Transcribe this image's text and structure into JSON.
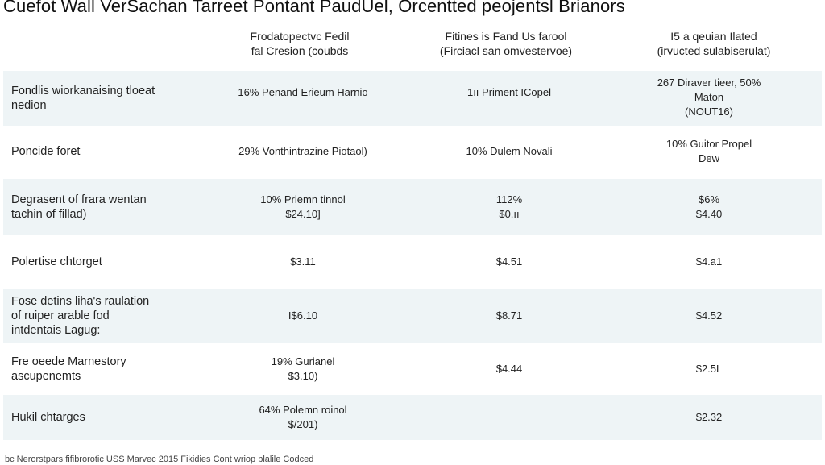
{
  "title": "Cuefot Wall VerSachan Tarreet Pontant PaudUel, Orcentted peojentsl Brianors",
  "columns": [
    {
      "lines": [
        "Frodatopectvc Fedil",
        "fal Cresion (coubds"
      ]
    },
    {
      "lines": [
        "Fitines is Fand Us farool",
        "(Firciacl san omvestervoe)"
      ]
    },
    {
      "lines": [
        "I5 a qeuian Ilated",
        "(irvucted sulabiserulat)"
      ]
    }
  ],
  "rows": [
    {
      "label": [
        "Fondlis wiorkanaising tloeat",
        "nedion"
      ],
      "cells": [
        [
          "16% Penand Erieum Harnio"
        ],
        [
          "1ıı Priment ICopel"
        ],
        [
          "267 Diraver tieer, 50%",
          "Maton",
          "(NOUT16)"
        ]
      ]
    },
    {
      "label": [
        "Poncide foret"
      ],
      "cells": [
        [
          "29% Vonthintrazine Piotaol)"
        ],
        [
          "10% Dulem Novali"
        ],
        [
          "10% Guitor Propel",
          "Dew"
        ]
      ]
    },
    {
      "label": [
        "Degrasent of frara wentan",
        "tachin of fillad)"
      ],
      "cells": [
        [
          "10% Priemn tinnol",
          "$24.10]"
        ],
        [
          "112%",
          "$0.ıı"
        ],
        [
          "$6%",
          "$4.40"
        ]
      ]
    },
    {
      "label": [
        "Polertise chtorget"
      ],
      "cells": [
        [
          "$3.11"
        ],
        [
          "$4.51"
        ],
        [
          "$4.a1"
        ]
      ]
    },
    {
      "label": [
        "Fose detins liha's raulation",
        "of ruiper arable fod",
        "intdentais Lagug:"
      ],
      "cells": [
        [
          "I$6.10"
        ],
        [
          "$8.71"
        ],
        [
          "$4.52"
        ]
      ]
    },
    {
      "label": [
        "Fre oeede Marnestory",
        "ascupenemts"
      ],
      "cells": [
        [
          "19% Gurianel",
          "$3.10)"
        ],
        [
          "$4.44"
        ],
        [
          "$2.5L"
        ]
      ]
    },
    {
      "label": [
        "Hukil chtarges"
      ],
      "cells": [
        [
          "64% Polemn roinol",
          "$/201)"
        ],
        [
          ""
        ],
        [
          "$2.32"
        ]
      ]
    }
  ],
  "footnote": "bc Nerorstpars fifibrorotic USS Marvec 2015 Fikidies Cont wriop blalile Codced"
}
